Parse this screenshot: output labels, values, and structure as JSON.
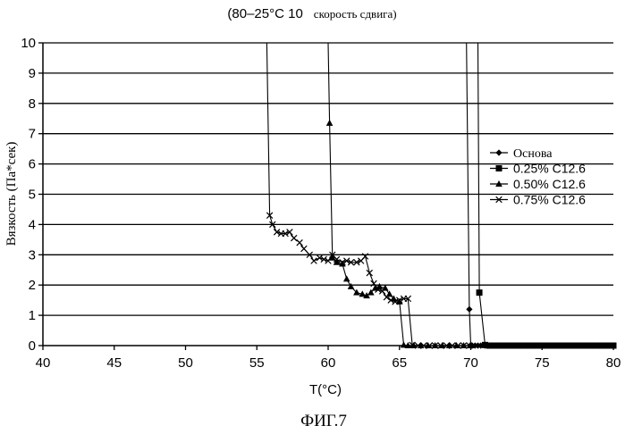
{
  "chart_data": {
    "type": "line",
    "title_part1": "(80–25°C 10",
    "title_part2": "скорость сдвига)",
    "xlabel": "T(°C)",
    "ylabel": "Вязкость (Па*сек)",
    "caption": "ФИГ.7",
    "xlim": [
      40,
      80
    ],
    "ylim": [
      0,
      10
    ],
    "xticks": [
      "40",
      "45",
      "50",
      "55",
      "60",
      "65",
      "70",
      "75",
      "80"
    ],
    "yticks": [
      "0",
      "1",
      "2",
      "3",
      "4",
      "5",
      "6",
      "7",
      "8",
      "9",
      "10"
    ],
    "grid": "horizontal",
    "legend_position": "right",
    "series": [
      {
        "name": "Основа",
        "marker": "diamond",
        "color": "#000000",
        "x": [
          69.7,
          69.9,
          70.0,
          70.1,
          70.3,
          70.5,
          70.7,
          71.0,
          71.5,
          72.0,
          72.5,
          73.0,
          73.5,
          74.0,
          74.5,
          75.0,
          75.5,
          76.0,
          76.5,
          77.0,
          77.5,
          78.0,
          78.5,
          79.0,
          79.5,
          80.0
        ],
        "y": [
          10.0,
          1.2,
          0.02,
          0.0,
          0.0,
          0.0,
          0.0,
          0.0,
          0.0,
          0.0,
          0.0,
          0.0,
          0.0,
          0.0,
          0.0,
          0.0,
          0.0,
          0.0,
          0.0,
          0.0,
          0.0,
          0.0,
          0.0,
          0.0,
          0.0,
          0.0
        ]
      },
      {
        "name": "0.25% C12.6",
        "marker": "square",
        "color": "#000000",
        "x": [
          70.5,
          70.6,
          71.0,
          71.3,
          71.7,
          72.0,
          72.4,
          72.8,
          73.2,
          73.6,
          74.0,
          74.4,
          74.8,
          75.2,
          75.6,
          76.0,
          76.4,
          76.8,
          77.2,
          77.6,
          78.0,
          78.4,
          78.8,
          79.2,
          79.6,
          80.0
        ],
        "y": [
          10.0,
          1.75,
          0.02,
          0.0,
          0.0,
          0.0,
          0.0,
          0.0,
          0.0,
          0.0,
          0.0,
          0.0,
          0.0,
          0.0,
          0.0,
          0.0,
          0.0,
          0.0,
          0.0,
          0.0,
          0.0,
          0.0,
          0.0,
          0.0,
          0.0,
          0.0
        ]
      },
      {
        "name": "0.50% C12.6",
        "marker": "triangle",
        "color": "#000000",
        "x": [
          60.0,
          60.1,
          60.3,
          60.6,
          61.0,
          61.3,
          61.6,
          62.0,
          62.4,
          62.7,
          63.0,
          63.3,
          63.6,
          64.0,
          64.3,
          64.6,
          65.0,
          65.3,
          65.6,
          66.0,
          66.5,
          67.0,
          67.5,
          68.0,
          68.5,
          69.0,
          69.5,
          70.0
        ],
        "y": [
          10.0,
          7.35,
          2.9,
          2.75,
          2.7,
          2.2,
          1.95,
          1.75,
          1.7,
          1.65,
          1.75,
          1.9,
          1.95,
          1.9,
          1.7,
          1.55,
          1.45,
          0.02,
          0.0,
          0.0,
          0.0,
          0.0,
          0.0,
          0.0,
          0.0,
          0.0,
          0.0,
          0.0
        ]
      },
      {
        "name": "0.75% C12.6",
        "marker": "x",
        "color": "#000000",
        "x": [
          55.7,
          55.9,
          56.1,
          56.4,
          56.7,
          57.0,
          57.3,
          57.6,
          58.0,
          58.3,
          58.7,
          59.0,
          59.4,
          59.7,
          60.0,
          60.3,
          60.6,
          61.0,
          61.3,
          61.6,
          62.0,
          62.3,
          62.6,
          62.9,
          63.2,
          63.5,
          63.8,
          64.1,
          64.4,
          64.7,
          65.0,
          65.3,
          65.6,
          65.9,
          66.3,
          66.7,
          67.1,
          67.5,
          67.9,
          68.3,
          68.7,
          69.1,
          69.5,
          69.9
        ],
        "y": [
          10.0,
          4.3,
          4.0,
          3.75,
          3.7,
          3.7,
          3.75,
          3.55,
          3.4,
          3.2,
          3.0,
          2.8,
          2.9,
          2.85,
          2.8,
          3.0,
          2.85,
          2.75,
          2.8,
          2.75,
          2.75,
          2.8,
          2.95,
          2.4,
          2.05,
          1.85,
          1.8,
          1.6,
          1.5,
          1.45,
          1.5,
          1.55,
          1.55,
          0.02,
          0.0,
          0.0,
          0.0,
          0.0,
          0.0,
          0.0,
          0.0,
          0.0,
          0.0,
          0.0
        ]
      }
    ]
  }
}
